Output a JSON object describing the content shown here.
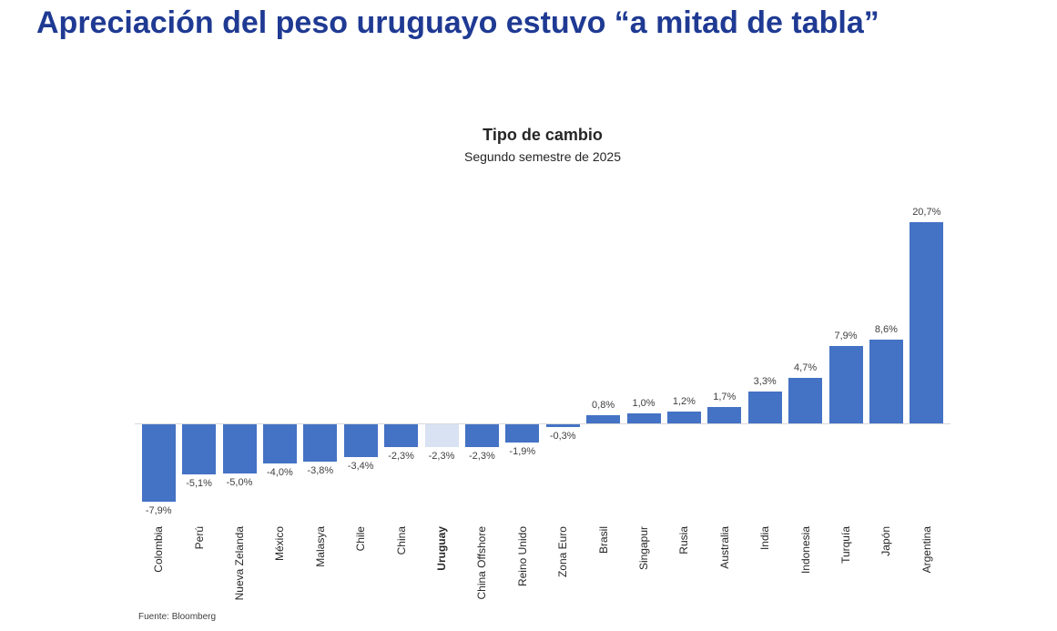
{
  "headline": "Apreciación del peso uruguayo estuvo “a mitad de tabla”",
  "chart_data": {
    "type": "bar",
    "title": "Tipo de cambio",
    "subtitle": "Segundo semestre de 2025",
    "source": "Fuente: Bloomberg",
    "categories": [
      "Colombia",
      "Perú",
      "Nueva Zelanda",
      "México",
      "Malasya",
      "Chile",
      "China",
      "Uruguay",
      "China Offshore",
      "Reino Unido",
      "Zona Euro",
      "Brasil",
      "Singapur",
      "Rusia",
      "Australia",
      "India",
      "Indonesia",
      "Turquía",
      "Japón",
      "Argentina"
    ],
    "values": [
      -7.9,
      -5.1,
      -5.0,
      -4.0,
      -3.8,
      -3.4,
      -2.3,
      -2.3,
      -2.3,
      -1.9,
      -0.3,
      0.8,
      1.0,
      1.2,
      1.7,
      3.3,
      4.7,
      7.9,
      8.6,
      20.7
    ],
    "value_labels": [
      "-7,9%",
      "-5,1%",
      "-5,0%",
      "-4,0%",
      "-3,8%",
      "-3,4%",
      "-2,3%",
      "-2,3%",
      "-2,3%",
      "-1,9%",
      "-0,3%",
      "0,8%",
      "1,0%",
      "1,2%",
      "1,7%",
      "3,3%",
      "4,7%",
      "7,9%",
      "8,6%",
      "20,7%"
    ],
    "highlight_category": "Uruguay",
    "bar_color": "#4472C4",
    "highlight_color": "#D9E2F3",
    "ylim": [
      -10,
      22
    ],
    "grid": false,
    "legend": false,
    "xlabel": "",
    "ylabel": ""
  }
}
